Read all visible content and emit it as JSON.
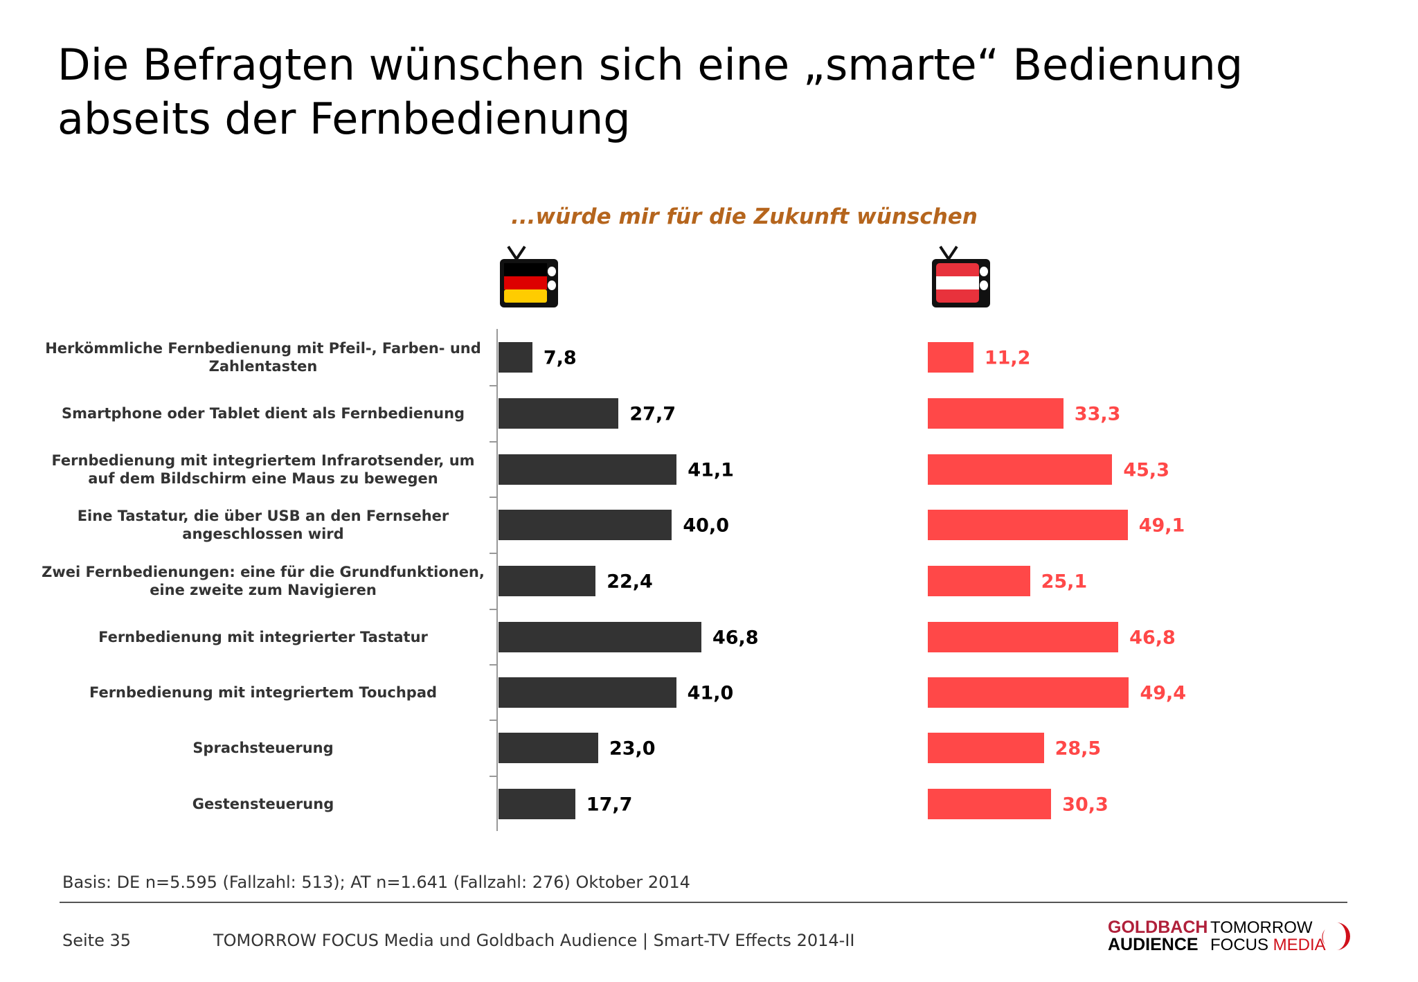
{
  "title": "Die Befragten wünschen sich eine „smarte“ Bedienung abseits der Fernbedienung",
  "chart_data": {
    "type": "bar",
    "orientation": "horizontal",
    "subtitle": "...würde mir für die Zukunft wünschen",
    "categories": [
      "Herkömmliche Fernbedienung mit Pfeil-, Farben- und Zahlentasten",
      "Smartphone oder Tablet dient als Fernbedienung",
      "Fernbedienung mit integriertem Infrarotsender, um auf dem Bildschirm eine Maus zu bewegen",
      "Eine Tastatur, die über USB an den Fernseher angeschlossen wird",
      "Zwei Fernbedienungen: eine für die Grundfunktionen, eine zweite zum Navigieren",
      "Fernbedienung mit integrierter Tastatur",
      "Fernbedienung mit integriertem Touchpad",
      "Sprachsteuerung",
      "Gestensteuerung"
    ],
    "series": [
      {
        "flag": "germany",
        "color": "#333333",
        "values": [
          7.8,
          27.7,
          41.1,
          40.0,
          22.4,
          46.8,
          41.0,
          23.0,
          17.7
        ],
        "labels": [
          "7,8",
          "27,7",
          "41,1",
          "40,0",
          "22,4",
          "46,8",
          "41,0",
          "23,0",
          "17,7"
        ]
      },
      {
        "flag": "austria",
        "color": "#ff4848",
        "values": [
          11.2,
          33.3,
          45.3,
          49.1,
          25.1,
          46.8,
          49.4,
          28.5,
          30.3
        ],
        "labels": [
          "11,2",
          "33,3",
          "45,3",
          "49,1",
          "25,1",
          "46,8",
          "49,4",
          "28,5",
          "30,3"
        ]
      }
    ]
  },
  "basis": "Basis: DE n=5.595 (Fallzahl: 513); AT n=1.641 (Fallzahl: 276) Oktober 2014",
  "footer": {
    "page": "Seite 35",
    "text": "TOMORROW FOCUS Media und Goldbach Audience | Smart-TV Effects 2014-II"
  },
  "logos": {
    "goldbach_1": "GOLDBACH",
    "goldbach_2": "AUDIENCE",
    "tfm_1": "TOMORROW",
    "tfm_2": "FOCUS",
    "tfm_3": "MEDIA"
  }
}
